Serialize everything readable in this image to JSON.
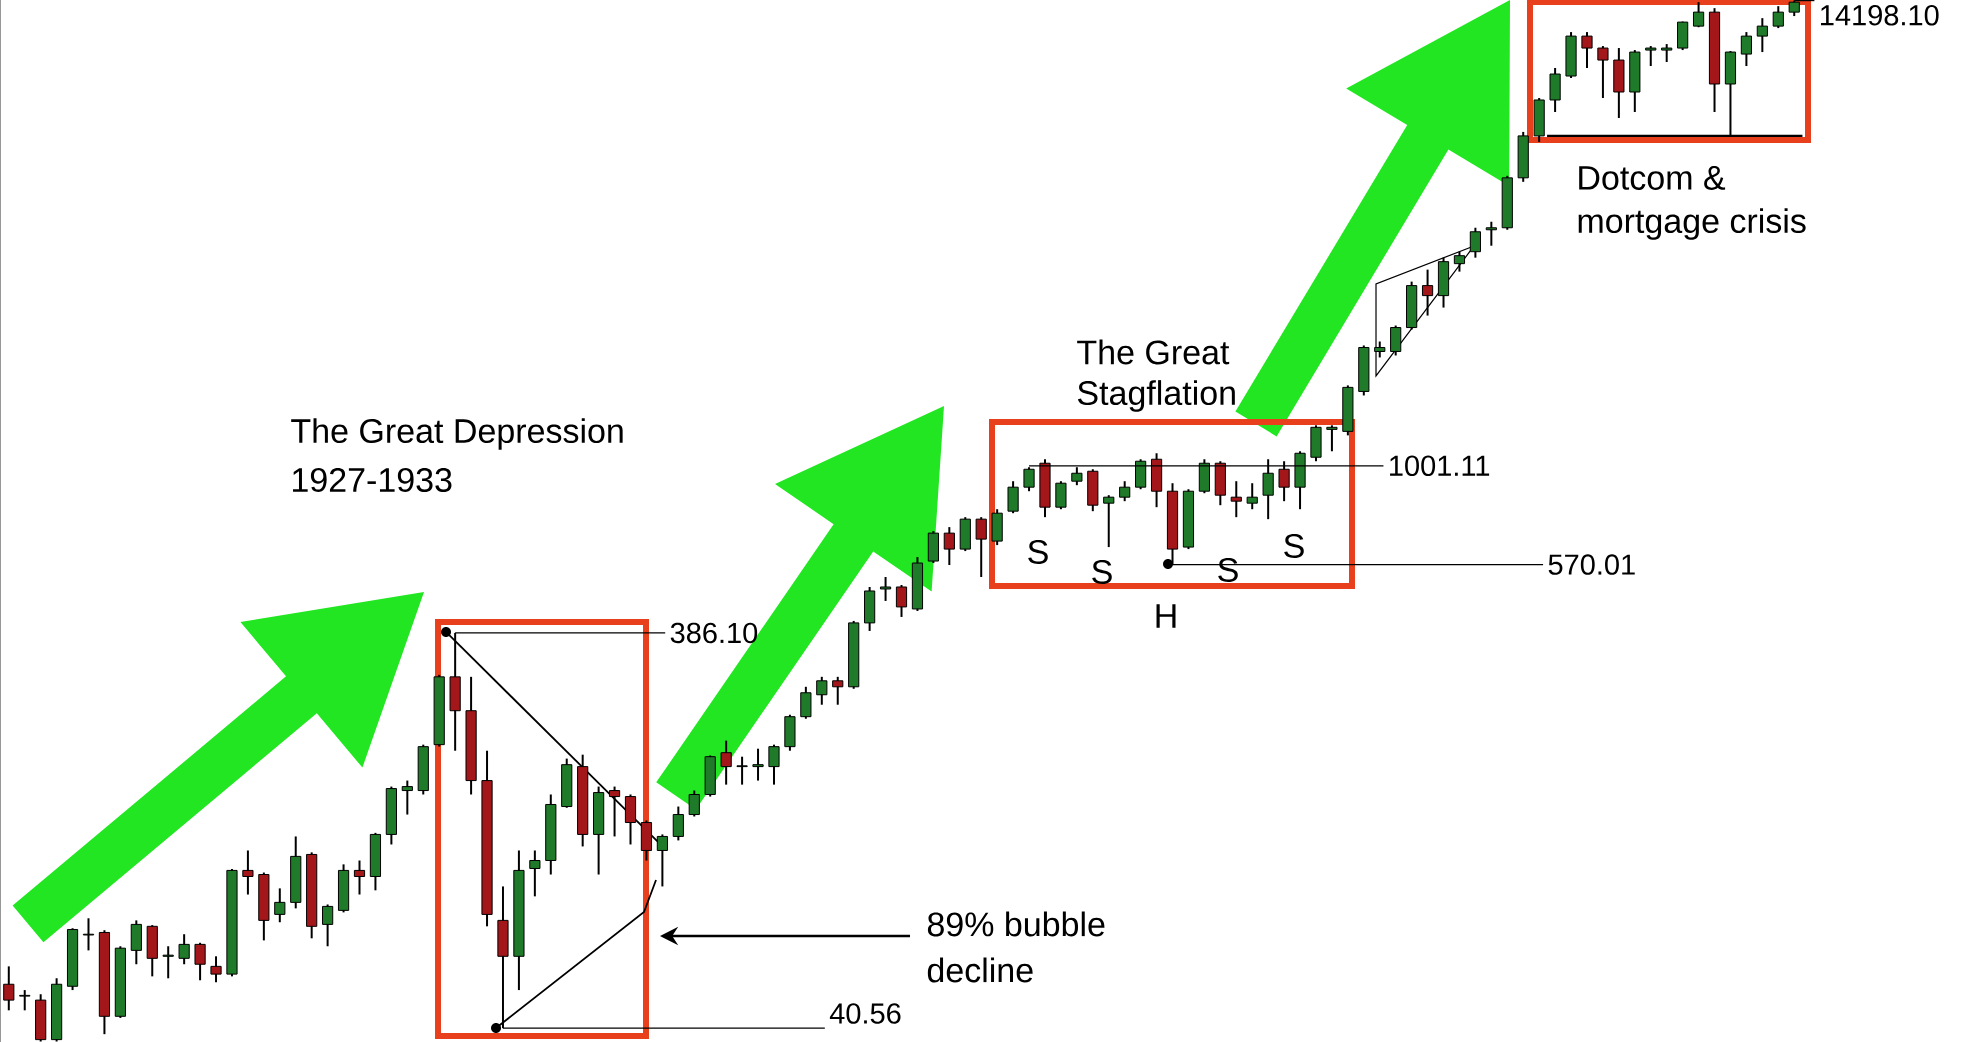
{
  "chart_data": {
    "type": "candlestick",
    "categories": [
      null,
      null,
      null,
      null,
      null,
      null,
      null,
      null,
      null,
      null,
      null,
      null,
      null,
      null,
      null,
      null,
      null,
      null,
      null,
      null,
      null,
      null,
      null,
      null,
      null,
      null,
      null,
      null,
      null,
      null,
      null,
      null,
      null,
      null,
      null,
      null,
      null,
      null,
      null,
      null,
      null,
      null,
      null,
      null,
      null,
      null,
      null,
      null,
      null,
      null,
      null,
      null,
      null,
      null,
      null,
      null,
      null,
      null,
      null,
      null,
      null,
      null,
      null,
      null,
      null,
      null,
      null,
      null,
      null,
      null,
      null,
      null,
      null,
      null,
      null,
      null,
      null,
      null,
      null,
      null,
      null,
      null,
      null,
      null,
      null,
      null,
      null,
      null,
      null,
      null,
      null,
      null,
      null,
      null,
      null,
      null,
      null,
      null,
      null,
      null,
      null,
      null,
      null,
      null,
      null,
      null,
      null,
      null,
      null,
      null,
      null,
      null,
      null
    ],
    "ohlc": [
      [
        52.1,
        57.7,
        44.9,
        47.6
      ],
      [
        48.7,
        50.4,
        44.9,
        48.9
      ],
      [
        47.6,
        49.2,
        37.6,
        38.0
      ],
      [
        38.0,
        53.9,
        37.6,
        52.1
      ],
      [
        51.5,
        71.7,
        50.4,
        71.2
      ],
      [
        69.0,
        75.9,
        63.2,
        69.3
      ],
      [
        70.0,
        70.9,
        39.2,
        43.4
      ],
      [
        43.4,
        64.7,
        43.0,
        64.0
      ],
      [
        63.2,
        75.0,
        58.4,
        73.3
      ],
      [
        72.5,
        73.0,
        54.5,
        60.4
      ],
      [
        61.1,
        64.7,
        53.9,
        61.5
      ],
      [
        60.4,
        69.3,
        58.4,
        65.4
      ],
      [
        65.4,
        66.0,
        53.3,
        58.4
      ],
      [
        57.7,
        61.1,
        52.7,
        55.2
      ],
      [
        55.2,
        100.5,
        54.5,
        99.7
      ],
      [
        99.7,
        111.7,
        86.9,
        96.3
      ],
      [
        97.4,
        98.5,
        66.9,
        75.0
      ],
      [
        77.6,
        90.0,
        74.2,
        83.1
      ],
      [
        83.1,
        121.0,
        80.3,
        108.0
      ],
      [
        109.2,
        110.5,
        67.7,
        72.5
      ],
      [
        73.3,
        82.1,
        64.7,
        81.2
      ],
      [
        79.4,
        103.2,
        78.5,
        99.7
      ],
      [
        99.7,
        105.5,
        86.9,
        96.3
      ],
      [
        96.3,
        123.5,
        89.0,
        122.4
      ],
      [
        122.4,
        160.8,
        115.6,
        159.0
      ],
      [
        157.2,
        166.4,
        137.1,
        160.8
      ],
      [
        157.2,
        204.2,
        153.7,
        201.9
      ],
      [
        204.2,
        304.0,
        202.0,
        300.6
      ],
      [
        300.6,
        386.1,
        197.3,
        247.8
      ],
      [
        247.8,
        300.6,
        153.7,
        166.4
      ],
      [
        166.4,
        197.3,
        72.5,
        77.6
      ],
      [
        75.0,
        91.0,
        40.56,
        61.1
      ],
      [
        61.1,
        111.7,
        50.4,
        99.7
      ],
      [
        100.8,
        111.7,
        86.0,
        105.5
      ],
      [
        105.5,
        153.7,
        97.4,
        145.2
      ],
      [
        143.5,
        188.6,
        142.5,
        182.2
      ],
      [
        180.2,
        192.9,
        114.3,
        122.4
      ],
      [
        122.4,
        160.8,
        97.4,
        155.4
      ],
      [
        157.2,
        160.8,
        121.0,
        151.9
      ],
      [
        151.9,
        153.7,
        115.6,
        131.0
      ],
      [
        131.0,
        132.5,
        105.5,
        111.7
      ],
      [
        111.7,
        122.4,
        91.0,
        121.0
      ],
      [
        121.0,
        143.5,
        118.3,
        137.1
      ],
      [
        137.1,
        157.2,
        135.6,
        153.7
      ],
      [
        153.7,
        192.0,
        151.9,
        190.7
      ],
      [
        195.1,
        208.9,
        162.6,
        180.2
      ],
      [
        180.2,
        190.7,
        162.6,
        181.0
      ],
      [
        180.2,
        199.6,
        166.4,
        182.2
      ],
      [
        180.2,
        204.2,
        162.6,
        201.9
      ],
      [
        201.9,
        242.2,
        197.3,
        239.5
      ],
      [
        239.5,
        284.0,
        236.7,
        274.5
      ],
      [
        271.4,
        300.6,
        256.4,
        293.9
      ],
      [
        293.9,
        300.6,
        256.4,
        284.0
      ],
      [
        284.0,
        413.4,
        280.8,
        408.8
      ],
      [
        408.8,
        501.7,
        390.5,
        490.4
      ],
      [
        496.0,
        531.0,
        463.3,
        501.7
      ],
      [
        501.7,
        507.4,
        422.9,
        447.8
      ],
      [
        442.6,
        595.0,
        437.6,
        575.1
      ],
      [
        581.6,
        689.8,
        575.1,
        682.0
      ],
      [
        682.0,
        705.8,
        568.6,
        622.7
      ],
      [
        622.7,
        747.1,
        615.7,
        738.6
      ],
      [
        738.6,
        747.1,
        531.0,
        659.1
      ],
      [
        651.7,
        781.8,
        637.1,
        764.2
      ],
      [
        773.0,
        916.9,
        764.2,
        886.2
      ],
      [
        886.2,
        993.0,
        866.1,
        981.6
      ],
      [
        1015.9,
        1039.2,
        747.1,
        790.8
      ],
      [
        790.8,
        916.9,
        781.8,
        906.5
      ],
      [
        916.9,
        993.0,
        896.3,
        959.5
      ],
      [
        970.5,
        981.6,
        773.0,
        799.8
      ],
      [
        809.0,
        846.6,
        629.9,
        837.1
      ],
      [
        837.1,
        916.9,
        818.2,
        886.2
      ],
      [
        886.2,
        1039.2,
        876.0,
        1027.5
      ],
      [
        1039.2,
        1075.3,
        790.8,
        866.1
      ],
      [
        866.1,
        906.5,
        570.01,
        622.7
      ],
      [
        629.9,
        876.0,
        622.7,
        866.1
      ],
      [
        866.1,
        1039.2,
        856.3,
        1015.9
      ],
      [
        1015.9,
        1027.5,
        799.8,
        846.6
      ],
      [
        837.1,
        916.9,
        747.1,
        818.2
      ],
      [
        809.0,
        906.5,
        781.8,
        837.1
      ],
      [
        846.6,
        1039.2,
        738.6,
        959.5
      ],
      [
        981.6,
        1027.5,
        818.2,
        886.2
      ],
      [
        886.2,
        1087.6,
        781.8,
        1075.3
      ],
      [
        1051.1,
        1261.0,
        1027.5,
        1246.7
      ],
      [
        1232.0,
        1261.0,
        1087.6,
        1246.7
      ],
      [
        1218.1,
        1583.2,
        1190.7,
        1565.4
      ],
      [
        1529.6,
        1988.0,
        1495.1,
        1965.4
      ],
      [
        1921.2,
        2033.4,
        1856.7,
        1965.4
      ],
      [
        1921.2,
        2227.2,
        1877.9,
        2201.9
      ],
      [
        2201.9,
        2860.9,
        2177.0,
        2796.7
      ],
      [
        2796.7,
        3063.0,
        2357.2,
        2641.3
      ],
      [
        2641.3,
        3279.5,
        2467.3,
        3205.7
      ],
      [
        3169.6,
        3393.4,
        3028.5,
        3316.9
      ],
      [
        3393.4,
        3890.0,
        3279.5,
        3801.7
      ],
      [
        3845.0,
        4024.8,
        3510.8,
        3890.0
      ],
      [
        3890.0,
        5228.5,
        3845.0,
        5169.6
      ],
      [
        5169.6,
        6716.4,
        5053.2,
        6565.2
      ],
      [
        6565.2,
        8150.0,
        6345.0,
        8057.6
      ],
      [
        8057.6,
        9667.8,
        7525.2,
        9342.3
      ],
      [
        9236.6,
        11865.0,
        9132.6,
        11597.6
      ],
      [
        11597.6,
        11865.0,
        9667.8,
        10833.2
      ],
      [
        10833.2,
        10957.0,
        8150.0,
        10117.1
      ],
      [
        10117.1,
        10833.2,
        7272.9,
        8433.0
      ],
      [
        8433.0,
        10709.0,
        7525.2,
        10588.3
      ],
      [
        10709.0,
        10957.0,
        9778.0,
        10833.2
      ],
      [
        10709.0,
        11082.0,
        10003.0,
        10833.2
      ],
      [
        10833.2,
        12600.0,
        10709.0,
        12559.2
      ],
      [
        12277.0,
        14072.0,
        12200.0,
        13294.7
      ],
      [
        13294.7,
        13601.0,
        7525.2,
        8826.2
      ],
      [
        8826.2,
        10650.0,
        6565.2,
        10588.3
      ],
      [
        10468.0,
        11865.0,
        9778.0,
        11597.6
      ],
      [
        11597.6,
        12848.0,
        10588.3,
        12277.0
      ],
      [
        12277.0,
        13756.0,
        12138.0,
        13294.7
      ],
      [
        13294.7,
        14198.1,
        13000.0,
        14072.0
      ]
    ],
    "ylim": [
      37.5,
      14250
    ],
    "log": "y",
    "tick_labels": false,
    "ref_lines": [
      {
        "axis": "y",
        "value": 386.1,
        "label": "386.10"
      },
      {
        "axis": "y",
        "value": 40.56,
        "label": "40.56"
      },
      {
        "axis": "y",
        "value": 1001.11,
        "label": "1001.11"
      },
      {
        "axis": "y",
        "value": 570.01,
        "label": "570.01"
      },
      {
        "axis": "y",
        "value": 14198.1,
        "label": "14198.10"
      },
      {
        "axis": "y",
        "value": 6565
      }
    ],
    "annotations": [
      "The Great Depression",
      "1927-1933",
      "The Great",
      "Stagflation",
      "89% bubble",
      "decline",
      "Dotcom &",
      "mortgage crisis",
      "S",
      "S",
      "H",
      "S",
      "S"
    ]
  }
}
